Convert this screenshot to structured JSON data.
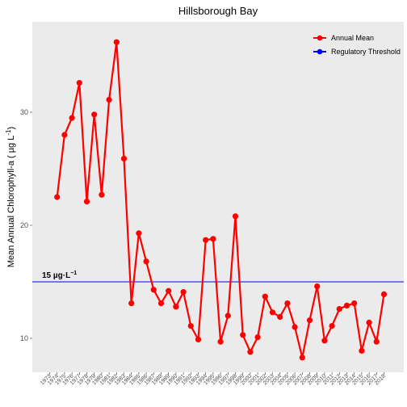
{
  "chart_data": {
    "type": "line",
    "title": "Hillsborough Bay",
    "ylabel_main": "Mean Annual Chlorophyll-a ( ",
    "ylabel_unit": "µg L",
    "ylabel_exp": "-1",
    "ylabel_close": ")",
    "xlabel": "",
    "ylim": [
      7,
      38
    ],
    "yticks": [
      10,
      20,
      30
    ],
    "x": [
      1973,
      1974,
      1975,
      1976,
      1977,
      1978,
      1979,
      1980,
      1981,
      1982,
      1983,
      1984,
      1985,
      1986,
      1987,
      1988,
      1989,
      1990,
      1991,
      1992,
      1993,
      1994,
      1995,
      1996,
      1997,
      1998,
      1999,
      2000,
      2001,
      2002,
      2003,
      2004,
      2005,
      2006,
      2007,
      2008,
      2009,
      2010,
      2011,
      2012,
      2013,
      2014,
      2015,
      2016,
      2017,
      2018
    ],
    "xticks": [
      "1973",
      "1974",
      "1975",
      "1976",
      "1977",
      "1978",
      "1979",
      "1980",
      "1981",
      "1982",
      "1983",
      "1984",
      "1985",
      "1986",
      "1987",
      "1988",
      "1989",
      "1990",
      "1991",
      "1992",
      "1993",
      "1994",
      "1995",
      "1996",
      "1997",
      "1998",
      "1999",
      "2000",
      "2001",
      "2002",
      "2003",
      "2004",
      "2005",
      "2006",
      "2007",
      "2008",
      "2009",
      "2010",
      "2011",
      "2012",
      "2013",
      "2014",
      "2015",
      "2016",
      "2017",
      "2018"
    ],
    "series": [
      {
        "name": "Annual Mean",
        "color": "#ff0000",
        "x": [
          1974,
          1975,
          1976,
          1977,
          1978,
          1979,
          1980,
          1981,
          1982,
          1983,
          1984,
          1985,
          1986,
          1987,
          1988,
          1989,
          1990,
          1991,
          1992,
          1993,
          1994,
          1995,
          1996,
          1997,
          1998,
          1999,
          2000,
          2001,
          2002,
          2003,
          2004,
          2005,
          2006,
          2007,
          2008,
          2009,
          2010,
          2011,
          2012,
          2013,
          2014,
          2015,
          2016,
          2017,
          2018
        ],
        "values": [
          22.5,
          28.0,
          29.5,
          32.6,
          22.1,
          29.8,
          22.7,
          31.1,
          36.2,
          25.9,
          13.1,
          19.3,
          16.8,
          14.3,
          13.1,
          14.2,
          12.8,
          14.1,
          11.1,
          9.9,
          18.7,
          18.8,
          9.7,
          12.0,
          20.8,
          10.3,
          8.8,
          10.1,
          13.7,
          12.3,
          11.9,
          13.1,
          11.0,
          8.3,
          11.6,
          14.6,
          9.8,
          11.1,
          12.6,
          12.9,
          13.1,
          8.9,
          11.4,
          9.7,
          13.9
        ]
      },
      {
        "name": "Regulatory Threshold",
        "color": "#0000ff",
        "value": 15
      }
    ],
    "annotation": {
      "text_main": "15 µg·L",
      "text_exp": "−1",
      "value": 15
    },
    "legend_position": "top-right",
    "grid": false,
    "panel_background": "#ebebeb"
  }
}
